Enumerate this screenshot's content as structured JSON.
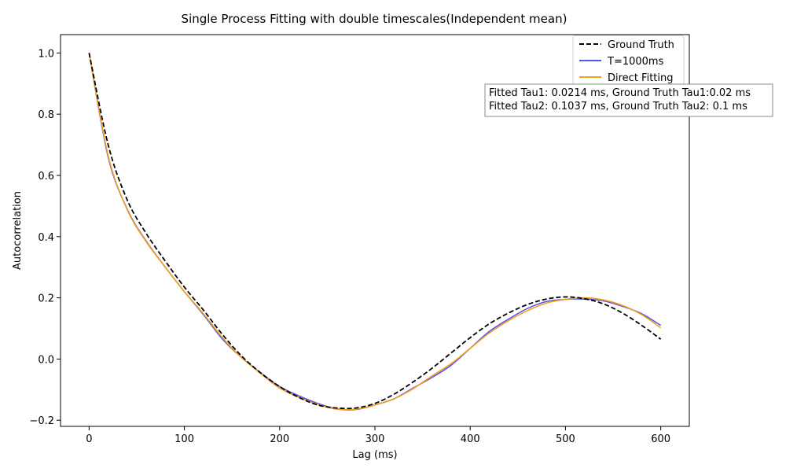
{
  "chart_data": {
    "type": "line",
    "title": "Single Process Fitting with double timescales(Independent mean)",
    "xlabel": "Lag (ms)",
    "ylabel": "Autocorrelation",
    "xlim": [
      -30,
      630
    ],
    "ylim": [
      -0.22,
      1.06
    ],
    "xticks": [
      0,
      100,
      200,
      300,
      400,
      500,
      600
    ],
    "yticks": [
      -0.2,
      0.0,
      0.2,
      0.4,
      0.6,
      0.8,
      1.0
    ],
    "xtick_labels": [
      "0",
      "100",
      "200",
      "300",
      "400",
      "500",
      "600"
    ],
    "ytick_labels": [
      "−0.2",
      "0.0",
      "0.2",
      "0.4",
      "0.6",
      "0.8",
      "1.0"
    ],
    "grid": false,
    "legend_position": "top-right",
    "x": [
      0,
      20,
      40,
      60,
      80,
      100,
      120,
      140,
      160,
      180,
      200,
      220,
      240,
      260,
      280,
      300,
      320,
      340,
      360,
      380,
      400,
      420,
      440,
      460,
      480,
      500,
      520,
      540,
      560,
      580,
      600
    ],
    "series": [
      {
        "name": "Ground Truth",
        "color": "#000000",
        "style": "dashed",
        "values": [
          1.0,
          0.7,
          0.52,
          0.41,
          0.32,
          0.235,
          0.16,
          0.08,
          0.01,
          -0.045,
          -0.09,
          -0.125,
          -0.15,
          -0.16,
          -0.16,
          -0.145,
          -0.115,
          -0.075,
          -0.03,
          0.02,
          0.07,
          0.115,
          0.15,
          0.178,
          0.196,
          0.203,
          0.197,
          0.18,
          0.15,
          0.11,
          0.065
        ]
      },
      {
        "name": "T=1000ms",
        "color": "#5555ee",
        "style": "solid",
        "values": [
          1.0,
          0.66,
          0.49,
          0.385,
          0.3,
          0.22,
          0.145,
          0.065,
          0.005,
          -0.045,
          -0.09,
          -0.12,
          -0.145,
          -0.163,
          -0.165,
          -0.15,
          -0.13,
          -0.095,
          -0.06,
          -0.02,
          0.035,
          0.09,
          0.13,
          0.165,
          0.188,
          0.195,
          0.196,
          0.19,
          0.172,
          0.148,
          0.11
        ]
      },
      {
        "name": "Direct Fitting",
        "color": "#f0a020",
        "style": "solid",
        "values": [
          1.0,
          0.665,
          0.488,
          0.383,
          0.3,
          0.22,
          0.148,
          0.07,
          0.005,
          -0.047,
          -0.095,
          -0.125,
          -0.148,
          -0.164,
          -0.164,
          -0.15,
          -0.13,
          -0.097,
          -0.055,
          -0.015,
          0.035,
          0.085,
          0.125,
          0.158,
          0.183,
          0.195,
          0.2,
          0.193,
          0.175,
          0.145,
          0.102
        ]
      }
    ],
    "annotation": {
      "lines": [
        "Fitted Tau1: 0.0214 ms, Ground Truth Tau1:0.02 ms",
        "Fitted Tau2: 0.1037 ms, Ground Truth Tau2: 0.1 ms"
      ]
    }
  }
}
